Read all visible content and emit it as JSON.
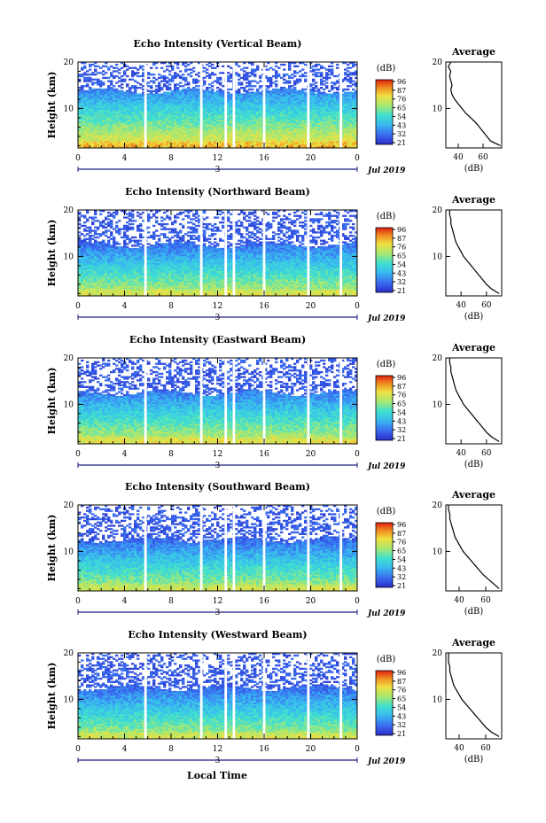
{
  "figure": {
    "xlabel": "Local Time",
    "date_label": "Jul 2019",
    "day_label": "3",
    "colorbar_unit": "(dB)",
    "colorbar_ticks": [
      96,
      87,
      76,
      65,
      54,
      43,
      32,
      21
    ],
    "profile_title": "Average",
    "profile_xlabel": "(dB)"
  },
  "chart_data": [
    {
      "type": "heatmap",
      "title": "Echo Intensity (Vertical Beam)",
      "ylabel": "Height (km)",
      "xlim": [
        0,
        24
      ],
      "ylim": [
        1.5,
        20
      ],
      "x_ticks": [
        "0",
        "4",
        "8",
        "12",
        "16",
        "20",
        "0"
      ],
      "y_ticks": [
        10,
        20
      ],
      "colorbar": {
        "ticks": [
          96,
          87,
          76,
          65,
          54,
          43,
          32,
          21
        ]
      },
      "data_gaps_hours": [
        5.8,
        10.6,
        12.7,
        13.4,
        16.0,
        19.8,
        22.6
      ],
      "profile": {
        "title": "Average",
        "xlabel": "(dB)",
        "x_ticks": [
          40,
          60
        ],
        "xlim": [
          30,
          75
        ],
        "heights": [
          2,
          3,
          4,
          5,
          6,
          7,
          8,
          9,
          10,
          11,
          12,
          13,
          14,
          15,
          16,
          17,
          18,
          19,
          20
        ],
        "values": [
          74,
          66,
          63,
          60,
          57,
          54,
          50,
          46,
          43,
          40,
          37,
          35,
          34,
          35,
          34,
          33,
          34,
          32,
          34
        ]
      }
    },
    {
      "type": "heatmap",
      "title": "Echo Intensity (Northward Beam)",
      "ylabel": "Height (km)",
      "xlim": [
        0,
        24
      ],
      "ylim": [
        1.5,
        20
      ],
      "x_ticks": [
        "0",
        "4",
        "8",
        "12",
        "16",
        "20",
        "0"
      ],
      "y_ticks": [
        10,
        20
      ],
      "colorbar": {
        "ticks": [
          96,
          87,
          76,
          65,
          54,
          43,
          32,
          21
        ]
      },
      "data_gaps_hours": [
        5.8,
        10.6,
        12.7,
        13.4,
        16.0,
        19.8,
        22.6
      ],
      "profile": {
        "title": "Average",
        "xlabel": "(dB)",
        "x_ticks": [
          40,
          60
        ],
        "xlim": [
          28,
          72
        ],
        "heights": [
          2,
          3,
          4,
          5,
          6,
          7,
          8,
          9,
          10,
          11,
          12,
          13,
          14,
          15,
          16,
          17,
          18,
          19,
          20
        ],
        "values": [
          70,
          64,
          60,
          57,
          54,
          51,
          48,
          45,
          42,
          40,
          38,
          36,
          35,
          34,
          33,
          32,
          32,
          31,
          31
        ]
      }
    },
    {
      "type": "heatmap",
      "title": "Echo Intensity (Eastward Beam)",
      "ylabel": "Height (km)",
      "xlim": [
        0,
        24
      ],
      "ylim": [
        1.5,
        20
      ],
      "x_ticks": [
        "0",
        "4",
        "8",
        "12",
        "16",
        "20",
        "0"
      ],
      "y_ticks": [
        10,
        20
      ],
      "colorbar": {
        "ticks": [
          96,
          87,
          76,
          65,
          54,
          43,
          32,
          21
        ]
      },
      "data_gaps_hours": [
        5.8,
        10.6,
        12.7,
        13.4,
        16.0,
        19.8,
        22.6
      ],
      "profile": {
        "title": "Average",
        "xlabel": "(dB)",
        "x_ticks": [
          40,
          60
        ],
        "xlim": [
          28,
          72
        ],
        "heights": [
          2,
          3,
          4,
          5,
          6,
          7,
          8,
          9,
          10,
          11,
          12,
          13,
          14,
          15,
          16,
          17,
          18,
          19,
          20
        ],
        "values": [
          70,
          64,
          60,
          57,
          54,
          51,
          48,
          45,
          42,
          40,
          38,
          36,
          35,
          34,
          33,
          32,
          32,
          31,
          31
        ]
      }
    },
    {
      "type": "heatmap",
      "title": "Echo Intensity (Southward Beam)",
      "ylabel": "Height (km)",
      "xlim": [
        0,
        24
      ],
      "ylim": [
        1.5,
        20
      ],
      "x_ticks": [
        "0",
        "4",
        "8",
        "12",
        "16",
        "20",
        "0"
      ],
      "y_ticks": [
        10,
        20
      ],
      "colorbar": {
        "ticks": [
          96,
          87,
          76,
          65,
          54,
          43,
          32,
          21
        ]
      },
      "data_gaps_hours": [
        5.8,
        10.6,
        12.7,
        13.4,
        16.0,
        19.8,
        22.6
      ],
      "profile": {
        "title": "Average",
        "xlabel": "(dB)",
        "x_ticks": [
          40,
          60
        ],
        "xlim": [
          30,
          72
        ],
        "heights": [
          2,
          3,
          4,
          5,
          6,
          7,
          8,
          9,
          10,
          11,
          12,
          13,
          14,
          15,
          16,
          17,
          18,
          19,
          20
        ],
        "values": [
          70,
          66,
          62,
          58,
          55,
          52,
          49,
          46,
          43,
          41,
          39,
          37,
          36,
          35,
          34,
          33,
          33,
          32,
          32
        ]
      }
    },
    {
      "type": "heatmap",
      "title": "Echo Intensity (Westward Beam)",
      "ylabel": "Height (km)",
      "xlim": [
        0,
        24
      ],
      "ylim": [
        1.5,
        20
      ],
      "x_ticks": [
        "0",
        "4",
        "8",
        "12",
        "16",
        "20",
        "0"
      ],
      "y_ticks": [
        10,
        20
      ],
      "colorbar": {
        "ticks": [
          96,
          87,
          76,
          65,
          54,
          43,
          32,
          21
        ]
      },
      "data_gaps_hours": [
        5.8,
        10.6,
        12.7,
        13.4,
        16.0,
        19.8,
        22.6
      ],
      "profile": {
        "title": "Average",
        "xlabel": "(dB)",
        "x_ticks": [
          40,
          60
        ],
        "xlim": [
          30,
          72
        ],
        "heights": [
          2,
          3,
          4,
          5,
          6,
          7,
          8,
          9,
          10,
          11,
          12,
          13,
          14,
          15,
          16,
          17,
          18,
          19,
          20
        ],
        "values": [
          70,
          64,
          60,
          57,
          54,
          51,
          48,
          45,
          42,
          40,
          38,
          36,
          35,
          34,
          33,
          33,
          32,
          32,
          32
        ]
      }
    }
  ]
}
